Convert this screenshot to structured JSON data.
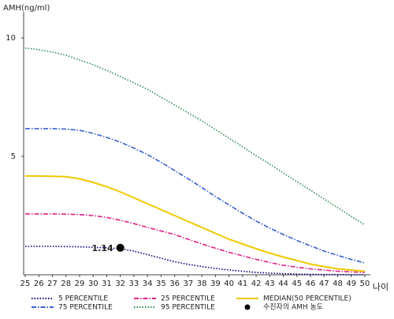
{
  "chart_data": {
    "type": "line",
    "y_label": "AMH(ng/ml)",
    "x_label": "나이",
    "x": [
      25,
      26,
      27,
      28,
      29,
      30,
      31,
      32,
      33,
      34,
      35,
      36,
      37,
      38,
      39,
      40,
      41,
      42,
      43,
      44,
      45,
      46,
      47,
      48,
      49,
      50
    ],
    "xticks": [
      25,
      26,
      27,
      28,
      29,
      30,
      31,
      32,
      33,
      34,
      35,
      36,
      37,
      38,
      39,
      40,
      41,
      42,
      43,
      44,
      45,
      46,
      47,
      48,
      49,
      50
    ],
    "xlim": [
      25,
      50
    ],
    "ylim": [
      0,
      11.1
    ],
    "yticks": [
      5,
      10
    ],
    "series": [
      {
        "name": "5 PERCENTILE",
        "color": "#000080",
        "style": "dotted",
        "values": [
          1.2,
          1.2,
          1.2,
          1.19,
          1.18,
          1.16,
          1.14,
          1.1,
          1.0,
          0.85,
          0.7,
          0.55,
          0.44,
          0.35,
          0.27,
          0.2,
          0.15,
          0.1,
          0.07,
          0.05,
          0.03,
          0.02,
          0.01,
          0.01,
          0.0,
          0.0
        ]
      },
      {
        "name": "25 PERCENTILE",
        "color": "#e0218a",
        "style": "dashdot",
        "values": [
          2.57,
          2.57,
          2.57,
          2.56,
          2.54,
          2.5,
          2.42,
          2.3,
          2.16,
          2.0,
          1.85,
          1.7,
          1.5,
          1.3,
          1.12,
          0.95,
          0.8,
          0.65,
          0.52,
          0.4,
          0.32,
          0.25,
          0.2,
          0.15,
          0.12,
          0.1
        ]
      },
      {
        "name": "MEDIAN(50 PERCENTILE)",
        "color": "#f0c800",
        "style": "solid",
        "values": [
          4.17,
          4.17,
          4.16,
          4.14,
          4.05,
          3.9,
          3.72,
          3.5,
          3.25,
          3.0,
          2.75,
          2.5,
          2.25,
          2.0,
          1.75,
          1.5,
          1.3,
          1.1,
          0.92,
          0.75,
          0.6,
          0.45,
          0.35,
          0.25,
          0.2,
          0.15
        ]
      },
      {
        "name": "75 PERCENTILE",
        "color": "#3a5fcd",
        "style": "dashdot",
        "values": [
          6.17,
          6.17,
          6.17,
          6.15,
          6.1,
          5.97,
          5.8,
          5.6,
          5.35,
          5.07,
          4.75,
          4.4,
          4.05,
          3.68,
          3.3,
          2.95,
          2.6,
          2.27,
          1.97,
          1.7,
          1.45,
          1.22,
          1.0,
          0.82,
          0.65,
          0.5
        ]
      },
      {
        "name": "95 PERCENTILE",
        "color": "#2e8b57",
        "style": "dotted",
        "values": [
          9.57,
          9.5,
          9.4,
          9.27,
          9.07,
          8.87,
          8.63,
          8.37,
          8.1,
          7.83,
          7.5,
          7.17,
          6.83,
          6.5,
          6.13,
          5.77,
          5.4,
          5.03,
          4.67,
          4.3,
          3.93,
          3.57,
          3.2,
          2.83,
          2.47,
          2.1
        ]
      }
    ],
    "point": {
      "name": "수진자의 AMH 농도",
      "color": "#000000",
      "x": 32,
      "y": 1.14
    }
  }
}
